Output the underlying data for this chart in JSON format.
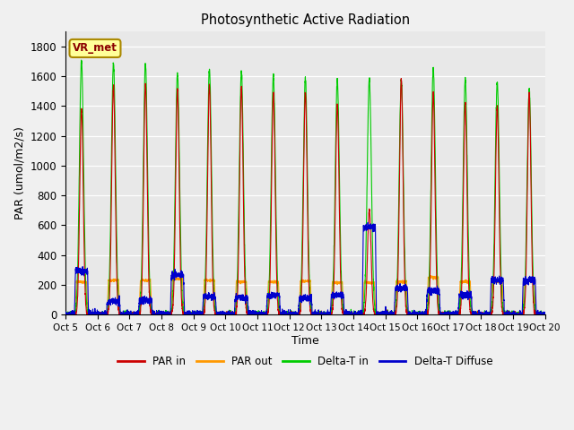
{
  "title": "Photosynthetic Active Radiation",
  "ylabel": "PAR (umol/m2/s)",
  "xlabel": "Time",
  "box_label": "VR_met",
  "ylim": [
    0,
    1900
  ],
  "yticks": [
    0,
    200,
    400,
    600,
    800,
    1000,
    1200,
    1400,
    1600,
    1800
  ],
  "xtick_labels": [
    "Oct 5",
    "Oct 6",
    "Oct 7",
    "Oct 8",
    "Oct 9",
    "Oct 10",
    "Oct 11",
    "Oct 12",
    "Oct 13",
    "Oct 14",
    "Oct 15",
    "Oct 16",
    "Oct 17",
    "Oct 18",
    "Oct 19",
    "Oct 20"
  ],
  "colors": {
    "PAR_in": "#cc0000",
    "PAR_out": "#ff9900",
    "Delta_T_in": "#00cc00",
    "Delta_T_Diffuse": "#0000cc"
  },
  "legend_labels": [
    "PAR in",
    "PAR out",
    "Delta-T in",
    "Delta-T Diffuse"
  ],
  "fig_bg_color": "#f0f0f0",
  "plot_bg_color": "#e8e8e8",
  "n_days": 15,
  "samples_per_day": 288,
  "PAR_in_peaks": [
    1380,
    1540,
    1550,
    1510,
    1540,
    1530,
    1490,
    1490,
    1420,
    700,
    1580,
    1480,
    1420,
    1400,
    1490
  ],
  "PAR_out_peaks": [
    220,
    230,
    230,
    240,
    230,
    220,
    220,
    225,
    215,
    215,
    220,
    250,
    220,
    220,
    225
  ],
  "Delta_T_in_peaks": [
    1700,
    1690,
    1680,
    1620,
    1650,
    1630,
    1610,
    1590,
    1570,
    1580,
    1580,
    1650,
    1580,
    1560,
    1510
  ],
  "Delta_T_Diffuse_peaks": [
    290,
    90,
    95,
    265,
    120,
    115,
    130,
    110,
    130,
    590,
    175,
    160,
    130,
    230,
    230
  ]
}
